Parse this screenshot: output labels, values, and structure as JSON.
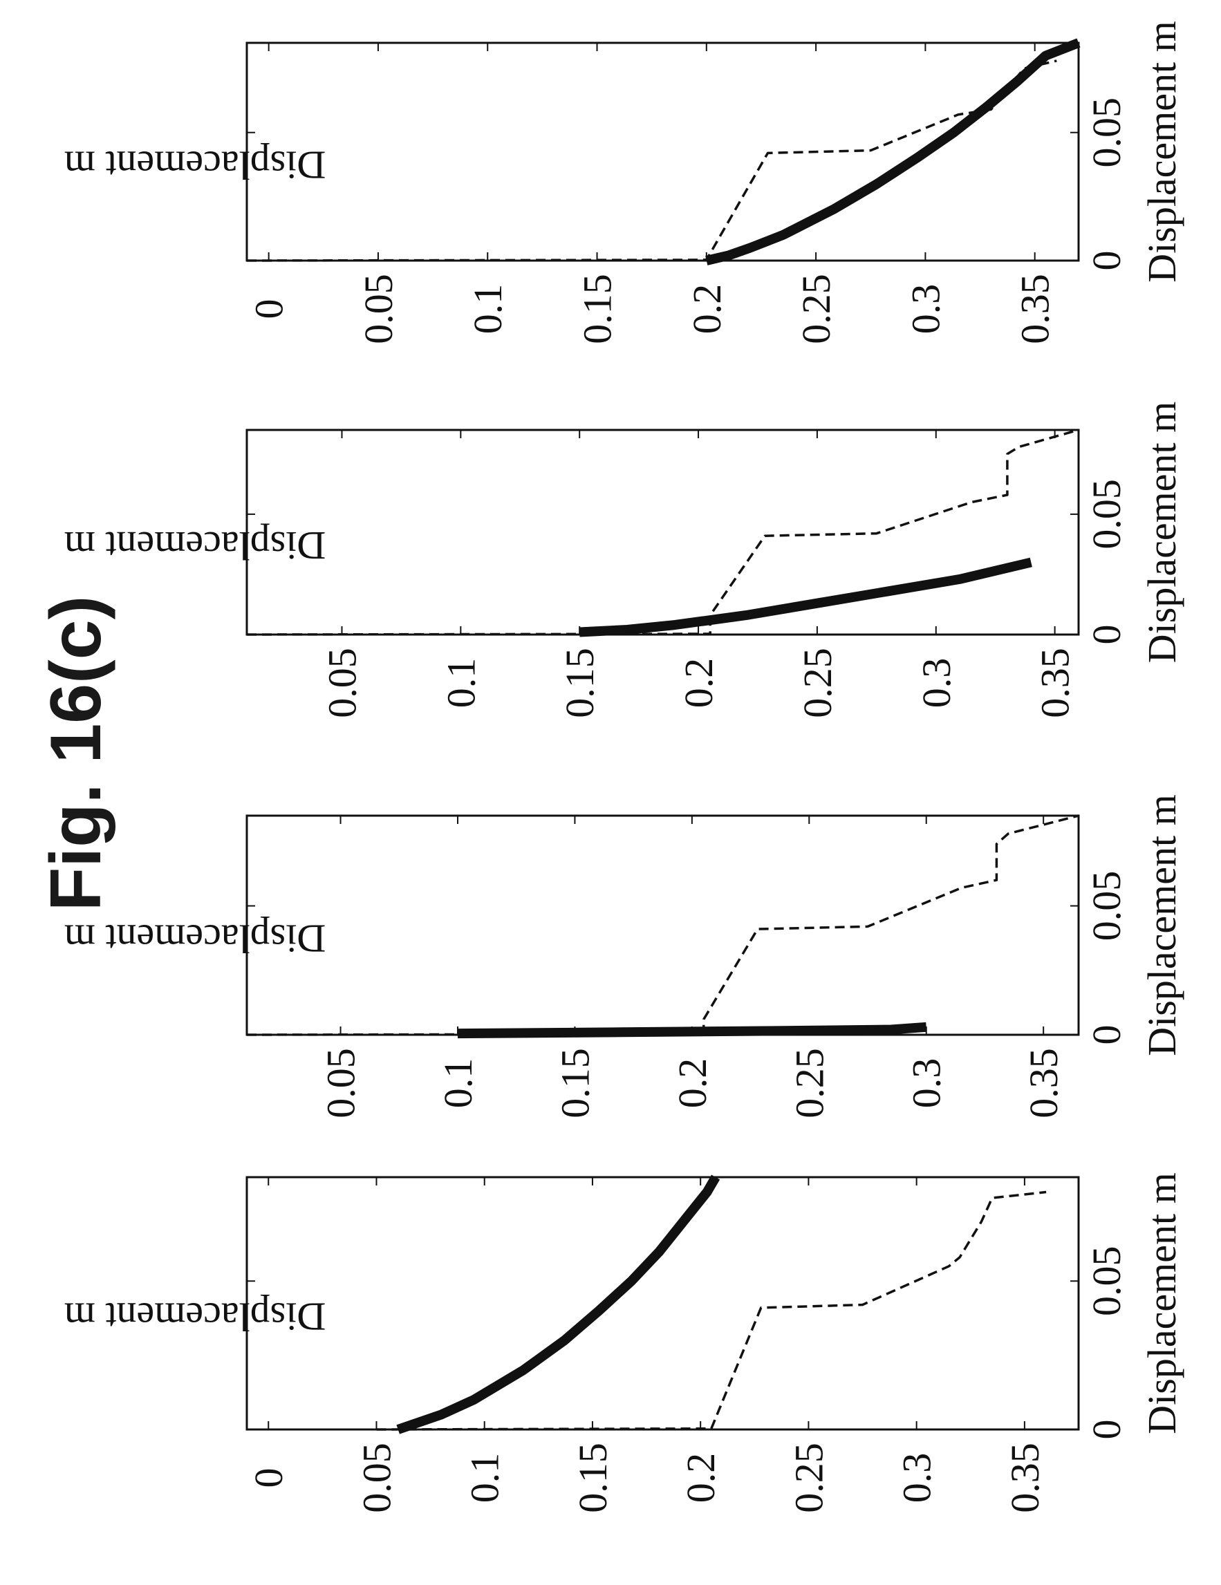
{
  "figure": {
    "title": "Fig. 16(c)"
  },
  "chart_data": [
    {
      "type": "line",
      "orientation": "rotated 90 degrees counter-clockwise",
      "xlabel": "Displacement m",
      "ylabel": "Displacement m",
      "xlim": [
        0,
        0.085
      ],
      "ylim": [
        -0.01,
        0.375
      ],
      "xticks": [
        {
          "v": 0,
          "label": "0"
        },
        {
          "v": 0.05,
          "label": "0.05"
        }
      ],
      "yticks": [
        {
          "v": 0,
          "label": "0"
        },
        {
          "v": 0.05,
          "label": "0.05"
        },
        {
          "v": 0.1,
          "label": "0.1"
        },
        {
          "v": 0.15,
          "label": "0.15"
        },
        {
          "v": 0.2,
          "label": "0.2"
        },
        {
          "v": 0.25,
          "label": "0.25"
        },
        {
          "v": 0.3,
          "label": "0.3"
        },
        {
          "v": 0.35,
          "label": "0.35"
        }
      ],
      "series": [
        {
          "style": "solid-thick",
          "x": [
            0,
            0.005,
            0.01,
            0.02,
            0.03,
            0.04,
            0.05,
            0.06,
            0.07,
            0.08,
            0.085
          ],
          "y": [
            0.06,
            0.08,
            0.095,
            0.118,
            0.137,
            0.153,
            0.168,
            0.181,
            0.192,
            0.203,
            0.207
          ]
        },
        {
          "style": "dashed",
          "x": [
            0,
            0.0003,
            0.041,
            0.042,
            0.055,
            0.058,
            0.07,
            0.078,
            0.08
          ],
          "y": [
            0.05,
            0.205,
            0.228,
            0.275,
            0.315,
            0.32,
            0.33,
            0.335,
            0.36
          ]
        }
      ]
    },
    {
      "type": "line",
      "orientation": "rotated 90 degrees counter-clockwise",
      "xlabel": "Displacement m",
      "ylabel": "Displacement m",
      "xlim": [
        0,
        0.085
      ],
      "ylim": [
        0.01,
        0.365
      ],
      "xticks": [
        {
          "v": 0,
          "label": "0"
        },
        {
          "v": 0.05,
          "label": "0.05"
        }
      ],
      "yticks": [
        {
          "v": 0.05,
          "label": "0.05"
        },
        {
          "v": 0.1,
          "label": "0.1"
        },
        {
          "v": 0.15,
          "label": "0.15"
        },
        {
          "v": 0.2,
          "label": "0.2"
        },
        {
          "v": 0.25,
          "label": "0.25"
        },
        {
          "v": 0.3,
          "label": "0.3"
        },
        {
          "v": 0.35,
          "label": "0.35"
        }
      ],
      "series": [
        {
          "style": "solid-thick",
          "x": [
            0.0005,
            0.001,
            0.0015,
            0.002,
            0.003
          ],
          "y": [
            0.1,
            0.17,
            0.235,
            0.285,
            0.3
          ]
        },
        {
          "style": "dashed",
          "x": [
            0,
            0.0003,
            0.006,
            0.041,
            0.042,
            0.057,
            0.06,
            0.074,
            0.078,
            0.085
          ],
          "y": [
            0.01,
            0.205,
            0.205,
            0.228,
            0.275,
            0.315,
            0.33,
            0.33,
            0.335,
            0.365
          ]
        }
      ]
    },
    {
      "type": "line",
      "orientation": "rotated 90 degrees counter-clockwise",
      "xlabel": "Displacement m",
      "ylabel": "Displacement m",
      "xlim": [
        0,
        0.085
      ],
      "ylim": [
        0.01,
        0.36
      ],
      "xticks": [
        {
          "v": 0,
          "label": "0"
        },
        {
          "v": 0.05,
          "label": "0.05"
        }
      ],
      "yticks": [
        {
          "v": 0.05,
          "label": "0.05"
        },
        {
          "v": 0.1,
          "label": "0.1"
        },
        {
          "v": 0.15,
          "label": "0.15"
        },
        {
          "v": 0.2,
          "label": "0.2"
        },
        {
          "v": 0.25,
          "label": "0.25"
        },
        {
          "v": 0.3,
          "label": "0.3"
        },
        {
          "v": 0.35,
          "label": "0.35"
        }
      ],
      "series": [
        {
          "style": "solid-thick",
          "x": [
            0.001,
            0.002,
            0.004,
            0.008,
            0.013,
            0.018,
            0.023,
            0.03
          ],
          "y": [
            0.15,
            0.17,
            0.19,
            0.22,
            0.25,
            0.28,
            0.31,
            0.34
          ]
        },
        {
          "style": "dashed",
          "x": [
            0,
            0.0003,
            0.008,
            0.041,
            0.042,
            0.055,
            0.058,
            0.075,
            0.078,
            0.085
          ],
          "y": [
            0.01,
            0.205,
            0.205,
            0.228,
            0.275,
            0.315,
            0.33,
            0.33,
            0.335,
            0.36
          ]
        }
      ]
    },
    {
      "type": "line",
      "orientation": "rotated 90 degrees counter-clockwise",
      "xlabel": "Displacement m",
      "ylabel": "Displacement m",
      "xlim": [
        0,
        0.085
      ],
      "ylim": [
        -0.01,
        0.37
      ],
      "xticks": [
        {
          "v": 0,
          "label": "0"
        },
        {
          "v": 0.05,
          "label": "0.05"
        }
      ],
      "yticks": [
        {
          "v": 0,
          "label": "0"
        },
        {
          "v": 0.05,
          "label": "0.05"
        },
        {
          "v": 0.1,
          "label": "0.1"
        },
        {
          "v": 0.15,
          "label": "0.15"
        },
        {
          "v": 0.2,
          "label": "0.2"
        },
        {
          "v": 0.25,
          "label": "0.25"
        },
        {
          "v": 0.3,
          "label": "0.3"
        },
        {
          "v": 0.35,
          "label": "0.35"
        }
      ],
      "series": [
        {
          "style": "solid-thick",
          "x": [
            0,
            0.002,
            0.005,
            0.01,
            0.02,
            0.03,
            0.04,
            0.05,
            0.06,
            0.07,
            0.08,
            0.085
          ],
          "y": [
            0.2,
            0.21,
            0.22,
            0.235,
            0.258,
            0.278,
            0.296,
            0.313,
            0.328,
            0.342,
            0.355,
            0.37
          ]
        },
        {
          "style": "dashed",
          "x": [
            0,
            0.0003,
            0.042,
            0.043,
            0.057,
            0.059,
            0.075,
            0.078
          ],
          "y": [
            -0.01,
            0.2,
            0.228,
            0.275,
            0.315,
            0.33,
            0.345,
            0.36
          ]
        }
      ]
    }
  ]
}
